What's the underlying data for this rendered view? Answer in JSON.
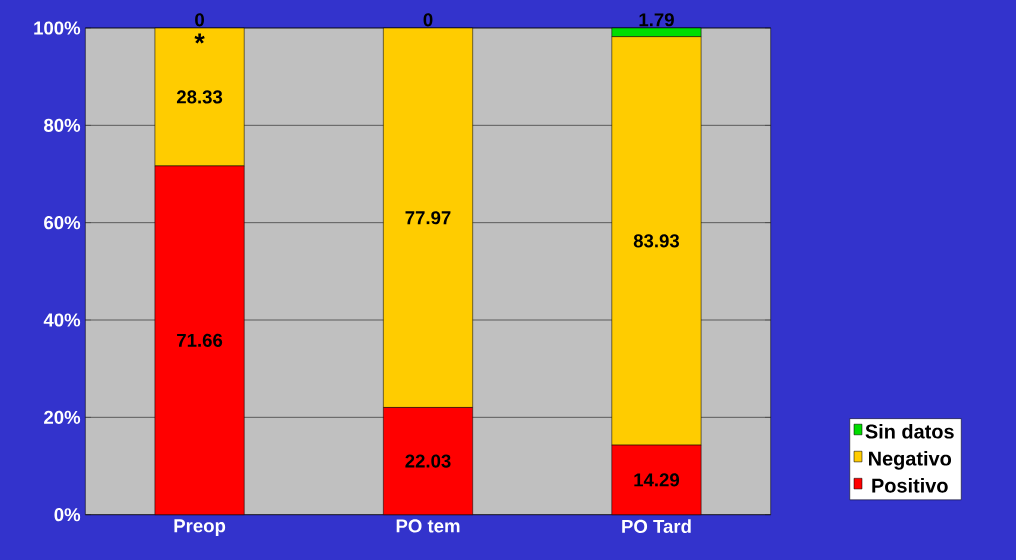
{
  "chart_data": {
    "type": "bar",
    "stacked": true,
    "categories": [
      "Preop",
      "PO tem",
      "PO Tard"
    ],
    "series": [
      {
        "name": "Positivo",
        "color": "#ff0000",
        "values": [
          71.66,
          22.03,
          14.29
        ]
      },
      {
        "name": "Negativo",
        "color": "#ffcc00",
        "values": [
          28.33,
          77.97,
          83.93
        ]
      },
      {
        "name": "Sin datos",
        "color": "#00dd00",
        "values": [
          0,
          0,
          1.79
        ]
      }
    ],
    "ylim": [
      0,
      100
    ],
    "yticks": [
      {
        "value": 0,
        "label": "0%"
      },
      {
        "value": 20,
        "label": "20%"
      },
      {
        "value": 40,
        "label": "40%"
      },
      {
        "value": 60,
        "label": "60%"
      },
      {
        "value": 80,
        "label": "80%"
      },
      {
        "value": 100,
        "label": "100%"
      }
    ],
    "grid": "y",
    "legend": "right",
    "data_labels": true,
    "annotations": [
      "*"
    ]
  }
}
